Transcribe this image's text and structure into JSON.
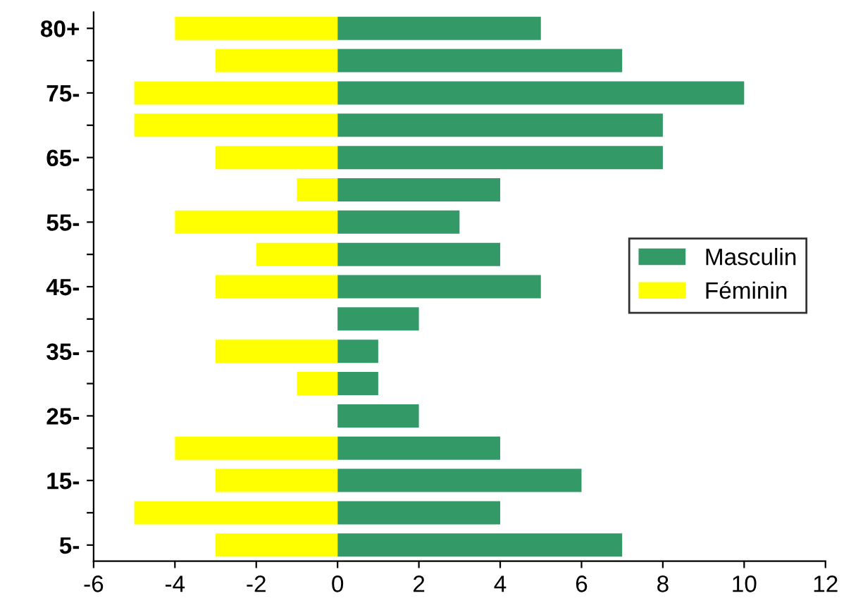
{
  "chart_data": {
    "type": "bar",
    "orientation": "horizontal",
    "stacked": true,
    "categories": [
      "80+",
      null,
      "75-",
      null,
      "65-",
      null,
      "55-",
      null,
      "45-",
      null,
      "35-",
      null,
      "25-",
      null,
      "15-",
      null,
      "5-"
    ],
    "series": [
      {
        "name": "Masculin",
        "color": "#339966",
        "values": [
          5,
          7,
          10,
          8,
          8,
          4,
          3,
          4,
          5,
          2,
          1,
          1,
          2,
          4,
          6,
          4,
          7
        ]
      },
      {
        "name": "Féminin",
        "color": "#ffff00",
        "values": [
          -4,
          -3,
          -5,
          -5,
          -3,
          -1,
          -4,
          -2,
          -3,
          0,
          -3,
          -1,
          0,
          -4,
          -3,
          -5,
          -3
        ]
      }
    ],
    "xlim": [
      -6,
      12
    ],
    "xticks": [
      -6,
      -4,
      -2,
      0,
      2,
      4,
      6,
      8,
      10,
      12
    ],
    "legend": "right",
    "grid": false
  }
}
